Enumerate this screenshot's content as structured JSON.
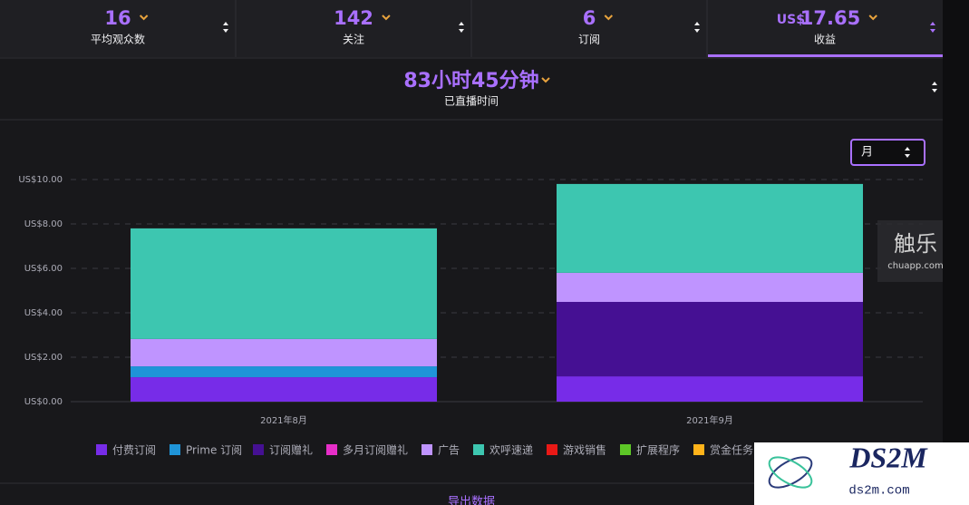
{
  "stats": [
    {
      "value": "16",
      "label": "平均观众数"
    },
    {
      "value": "142",
      "label": "关注"
    },
    {
      "value": "6",
      "label": "订阅"
    },
    {
      "prefix": "US$",
      "value": "17.65",
      "label": "收益"
    }
  ],
  "live_time": {
    "value": "83小时45分钟",
    "label": "已直播时间"
  },
  "period_select": "月",
  "chart_data": {
    "type": "stacked_bar",
    "categories": [
      "2021年8月",
      "2021年9月"
    ],
    "series": [
      {
        "name": "付费订阅",
        "color": "#772ce8",
        "values": [
          1.1,
          1.14
        ]
      },
      {
        "name": "Prime 订阅",
        "color": "#1f94d8",
        "values": [
          0.49,
          0
        ]
      },
      {
        "name": "订阅赠礼",
        "color": "#451093",
        "values": [
          0,
          3.35
        ]
      },
      {
        "name": "多月订阅赠礼",
        "color": "#e62ec8",
        "values": [
          0,
          0
        ]
      },
      {
        "name": "广告",
        "color": "#bf94ff",
        "values": [
          1.23,
          1.31
        ]
      },
      {
        "name": "欢呼速递",
        "color": "#3dc6b0",
        "values": [
          4.98,
          4.0
        ]
      },
      {
        "name": "游戏销售",
        "color": "#e91916",
        "values": [
          0,
          0
        ]
      },
      {
        "name": "扩展程序",
        "color": "#5dc727",
        "values": [
          0,
          0
        ]
      },
      {
        "name": "赏金任务",
        "color": "#ffb31a",
        "values": [
          0,
          0
        ]
      }
    ],
    "ylim": [
      0,
      10
    ],
    "yticks": [
      {
        "value": 0,
        "label": "US$0.00"
      },
      {
        "value": 2,
        "label": "US$2.00"
      },
      {
        "value": 4,
        "label": "US$4.00"
      },
      {
        "value": 6,
        "label": "US$6.00"
      },
      {
        "value": 8,
        "label": "US$8.00"
      },
      {
        "value": 10,
        "label": "US$10.00"
      }
    ],
    "grid": true
  },
  "export_label": "导出数据",
  "watermarks": {
    "chuapp_name": "触乐",
    "chuapp_url": "chuapp.com",
    "ds2m_name": "DS2M",
    "ds2m_url": "ds2m.com"
  }
}
